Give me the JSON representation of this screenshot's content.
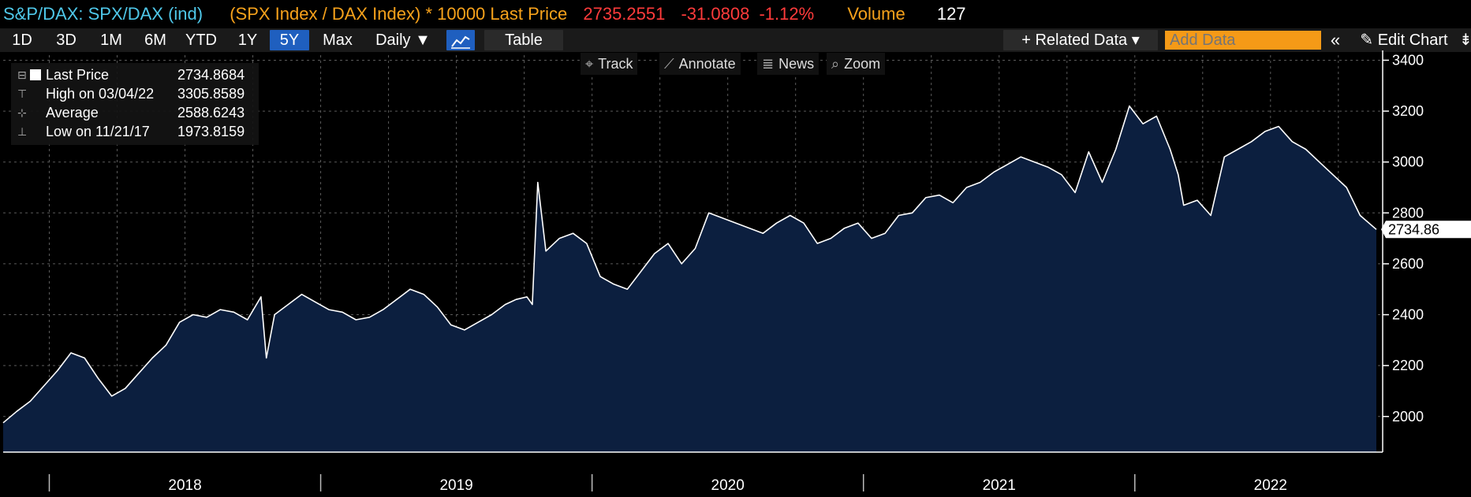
{
  "header": {
    "ticker": "S&P/DAX: SPX/DAX (ind)",
    "formula": "(SPX Index / DAX Index) * 10000 Last Price",
    "last_price": "2735.2551",
    "change": "-31.0808",
    "change_pct": "-1.12%",
    "volume_label": "Volume",
    "volume_value": "127"
  },
  "toolbar": {
    "periods": [
      "1D",
      "3D",
      "1M",
      "6M",
      "YTD",
      "1Y",
      "5Y",
      "Max"
    ],
    "active_period": "5Y",
    "frequency": "Daily ▼",
    "chart_icon": "line-chart-icon",
    "table_label": "Table",
    "related_data": "+ Related Data ▾",
    "add_data_placeholder": "Add Data",
    "collapse": "«",
    "edit_chart": "✎ Edit Chart",
    "more": "⇟"
  },
  "chart_tools": {
    "track": "Track",
    "annotate": "Annotate",
    "news": "News",
    "zoom": "Zoom"
  },
  "legend": {
    "last_price_label": "Last Price",
    "last_price_value": "2734.8684",
    "high_label": "High on 03/04/22",
    "high_value": "3305.8589",
    "average_label": "Average",
    "average_value": "2588.6243",
    "low_label": "Low on 11/21/17",
    "low_value": "1973.8159"
  },
  "colors": {
    "area_fill": "#0c1f3f",
    "line": "#ffffff",
    "grid": "#5a5a5a",
    "accent_orange": "#f7a21b",
    "accent_cyan": "#4fc8ea",
    "negative_red": "#ff3b3b"
  },
  "chart_data": {
    "type": "area",
    "title": "",
    "xlabel": "",
    "ylabel": "",
    "x_tick_labels": [
      "2018",
      "2019",
      "2020",
      "2021",
      "2022"
    ],
    "y_ticks": [
      2000,
      2200,
      2400,
      2600,
      2800,
      3000,
      3200,
      3400
    ],
    "ylim": [
      1860,
      3420
    ],
    "xlim": [
      2017.83,
      2022.89
    ],
    "grid": true,
    "last_value_label": "2734.86",
    "series": [
      {
        "x": [
          2017.83,
          2017.88,
          2017.93,
          2017.98,
          2018.03,
          2018.08,
          2018.13,
          2018.18,
          2018.23,
          2018.28,
          2018.33,
          2018.38,
          2018.43,
          2018.48,
          2018.53,
          2018.58,
          2018.63,
          2018.68,
          2018.73,
          2018.78,
          2018.8,
          2018.83,
          2018.88,
          2018.93,
          2018.98,
          2019.03,
          2019.08,
          2019.13,
          2019.18,
          2019.23,
          2019.28,
          2019.33,
          2019.38,
          2019.43,
          2019.48,
          2019.53,
          2019.58,
          2019.63,
          2019.68,
          2019.72,
          2019.76,
          2019.78,
          2019.8,
          2019.83,
          2019.88,
          2019.93,
          2019.98,
          2020.03,
          2020.08,
          2020.13,
          2020.18,
          2020.23,
          2020.28,
          2020.33,
          2020.38,
          2020.43,
          2020.48,
          2020.53,
          2020.58,
          2020.63,
          2020.68,
          2020.73,
          2020.78,
          2020.83,
          2020.88,
          2020.93,
          2020.98,
          2021.03,
          2021.08,
          2021.13,
          2021.18,
          2021.23,
          2021.28,
          2021.33,
          2021.38,
          2021.43,
          2021.48,
          2021.53,
          2021.58,
          2021.63,
          2021.68,
          2021.73,
          2021.78,
          2021.83,
          2021.88,
          2021.93,
          2021.98,
          2022.03,
          2022.08,
          2022.13,
          2022.16,
          2022.18,
          2022.23,
          2022.28,
          2022.33,
          2022.38,
          2022.43,
          2022.48,
          2022.53,
          2022.58,
          2022.63,
          2022.68,
          2022.73,
          2022.78,
          2022.83,
          2022.89
        ],
        "y": [
          1975,
          2020,
          2060,
          2120,
          2180,
          2250,
          2230,
          2150,
          2080,
          2110,
          2170,
          2230,
          2280,
          2370,
          2400,
          2390,
          2420,
          2410,
          2380,
          2470,
          2230,
          2400,
          2440,
          2480,
          2450,
          2420,
          2410,
          2380,
          2390,
          2420,
          2460,
          2500,
          2480,
          2430,
          2360,
          2340,
          2370,
          2400,
          2440,
          2460,
          2470,
          2440,
          2920,
          2650,
          2700,
          2720,
          2680,
          2550,
          2520,
          2500,
          2570,
          2640,
          2680,
          2600,
          2660,
          2800,
          2780,
          2760,
          2740,
          2720,
          2760,
          2790,
          2760,
          2680,
          2700,
          2740,
          2760,
          2700,
          2720,
          2790,
          2800,
          2860,
          2870,
          2840,
          2900,
          2920,
          2960,
          2990,
          3020,
          3000,
          2980,
          2950,
          2880,
          3040,
          2920,
          3050,
          3220,
          3150,
          3180,
          3050,
          2950,
          2830,
          2850,
          2790,
          3020,
          3050,
          3080,
          3120,
          3140,
          3080,
          3050,
          3000,
          2950,
          2900,
          2790,
          2735
        ]
      }
    ]
  }
}
